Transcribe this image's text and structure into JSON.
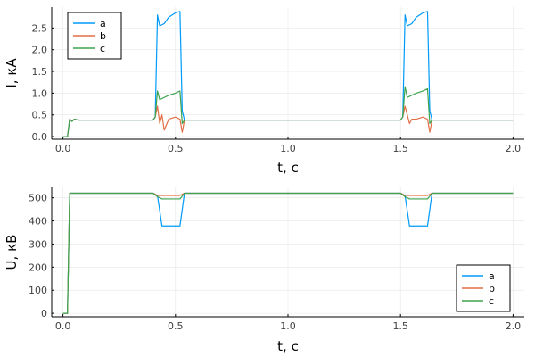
{
  "chart_data": [
    {
      "type": "line",
      "xlabel": "t, c",
      "ylabel": "I, кA",
      "xlim": [
        -0.05,
        2.05
      ],
      "ylim": [
        -0.06,
        2.98
      ],
      "xticks": [
        0,
        0.5,
        1,
        1.5,
        2
      ],
      "xtick_labels": [
        "0.0",
        "0.5",
        "1.0",
        "1.5",
        "2.0"
      ],
      "yticks": [
        0,
        0.5,
        1,
        1.5,
        2,
        2.5
      ],
      "ytick_labels": [
        "0.0",
        "0.5",
        "1.0",
        "1.5",
        "2.0",
        "2.5"
      ],
      "grid": true,
      "legend": "top-left",
      "series": [
        {
          "name": "a",
          "color": "#009AFA",
          "x": [
            0,
            0.02,
            0.03,
            0.04,
            0.05,
            0.07,
            0.1,
            0.2,
            0.3,
            0.4,
            0.41,
            0.42,
            0.43,
            0.45,
            0.47,
            0.5,
            0.52,
            0.53,
            0.54,
            0.6,
            0.8,
            1.0,
            1.2,
            1.4,
            1.5,
            1.51,
            1.52,
            1.53,
            1.55,
            1.57,
            1.6,
            1.62,
            1.63,
            1.64,
            1.7,
            1.8,
            2.0
          ],
          "y": [
            0,
            0,
            0.4,
            0.35,
            0.4,
            0.38,
            0.38,
            0.38,
            0.38,
            0.38,
            0.45,
            2.8,
            2.55,
            2.6,
            2.75,
            2.85,
            2.88,
            0.6,
            0.38,
            0.38,
            0.38,
            0.38,
            0.38,
            0.38,
            0.38,
            0.45,
            2.8,
            2.55,
            2.6,
            2.75,
            2.85,
            2.88,
            0.6,
            0.38,
            0.38,
            0.38,
            0.38
          ]
        },
        {
          "name": "b",
          "color": "#E26F46",
          "x": [
            0,
            0.02,
            0.03,
            0.04,
            0.05,
            0.07,
            0.1,
            0.2,
            0.3,
            0.4,
            0.41,
            0.42,
            0.43,
            0.44,
            0.45,
            0.47,
            0.5,
            0.52,
            0.53,
            0.54,
            0.6,
            0.8,
            1.0,
            1.2,
            1.4,
            1.5,
            1.51,
            1.52,
            1.53,
            1.54,
            1.55,
            1.57,
            1.6,
            1.62,
            1.63,
            1.64,
            1.7,
            1.8,
            2.0
          ],
          "y": [
            0,
            0,
            0.4,
            0.35,
            0.4,
            0.38,
            0.38,
            0.38,
            0.38,
            0.38,
            0.45,
            0.7,
            0.3,
            0.5,
            0.15,
            0.4,
            0.45,
            0.4,
            0.1,
            0.38,
            0.38,
            0.38,
            0.38,
            0.38,
            0.38,
            0.38,
            0.45,
            0.7,
            0.5,
            0.3,
            0.4,
            0.4,
            0.45,
            0.4,
            0.1,
            0.38,
            0.38,
            0.38,
            0.38
          ]
        },
        {
          "name": "c",
          "color": "#3DA44D",
          "x": [
            0,
            0.02,
            0.03,
            0.04,
            0.05,
            0.07,
            0.1,
            0.2,
            0.3,
            0.4,
            0.41,
            0.42,
            0.43,
            0.45,
            0.47,
            0.5,
            0.52,
            0.53,
            0.54,
            0.6,
            0.8,
            1.0,
            1.2,
            1.4,
            1.5,
            1.51,
            1.52,
            1.53,
            1.55,
            1.57,
            1.6,
            1.62,
            1.63,
            1.64,
            1.7,
            1.8,
            2.0
          ],
          "y": [
            0,
            0,
            0.4,
            0.35,
            0.4,
            0.38,
            0.38,
            0.38,
            0.38,
            0.38,
            0.45,
            1.05,
            0.85,
            0.9,
            0.95,
            1.0,
            1.05,
            0.3,
            0.38,
            0.38,
            0.38,
            0.38,
            0.38,
            0.38,
            0.38,
            0.45,
            1.15,
            0.9,
            0.95,
            1.0,
            1.05,
            1.1,
            0.3,
            0.38,
            0.38,
            0.38,
            0.38
          ]
        }
      ]
    },
    {
      "type": "line",
      "xlabel": "t, c",
      "ylabel": "U, кB",
      "xlim": [
        -0.05,
        2.05
      ],
      "ylim": [
        -15,
        545
      ],
      "xticks": [
        0,
        0.5,
        1,
        1.5,
        2
      ],
      "xtick_labels": [
        "0.0",
        "0.5",
        "1.0",
        "1.5",
        "2.0"
      ],
      "yticks": [
        0,
        100,
        200,
        300,
        400,
        500
      ],
      "ytick_labels": [
        "0",
        "100",
        "200",
        "300",
        "400",
        "500"
      ],
      "grid": true,
      "legend": "bottom-right",
      "series": [
        {
          "name": "a",
          "color": "#009AFA",
          "x": [
            0,
            0.02,
            0.03,
            0.1,
            0.4,
            0.42,
            0.44,
            0.5,
            0.52,
            0.54,
            1.0,
            1.5,
            1.52,
            1.54,
            1.6,
            1.62,
            1.64,
            2.0
          ],
          "y": [
            0,
            0,
            520,
            520,
            520,
            510,
            378,
            378,
            378,
            520,
            520,
            520,
            510,
            378,
            378,
            378,
            520,
            520
          ]
        },
        {
          "name": "b",
          "color": "#E26F46",
          "x": [
            0,
            0.02,
            0.03,
            0.1,
            0.4,
            0.42,
            0.44,
            0.5,
            0.52,
            0.54,
            1.0,
            1.5,
            1.52,
            1.54,
            1.6,
            1.62,
            1.64,
            2.0
          ],
          "y": [
            0,
            0,
            520,
            520,
            520,
            510,
            510,
            510,
            510,
            520,
            520,
            520,
            510,
            510,
            510,
            510,
            520,
            520
          ]
        },
        {
          "name": "c",
          "color": "#3DA44D",
          "x": [
            0,
            0.02,
            0.03,
            0.1,
            0.4,
            0.42,
            0.44,
            0.5,
            0.52,
            0.54,
            1.0,
            1.5,
            1.52,
            1.54,
            1.6,
            1.62,
            1.64,
            2.0
          ],
          "y": [
            0,
            0,
            520,
            520,
            520,
            505,
            495,
            495,
            495,
            520,
            520,
            520,
            505,
            495,
            495,
            495,
            520,
            520
          ]
        }
      ]
    }
  ]
}
